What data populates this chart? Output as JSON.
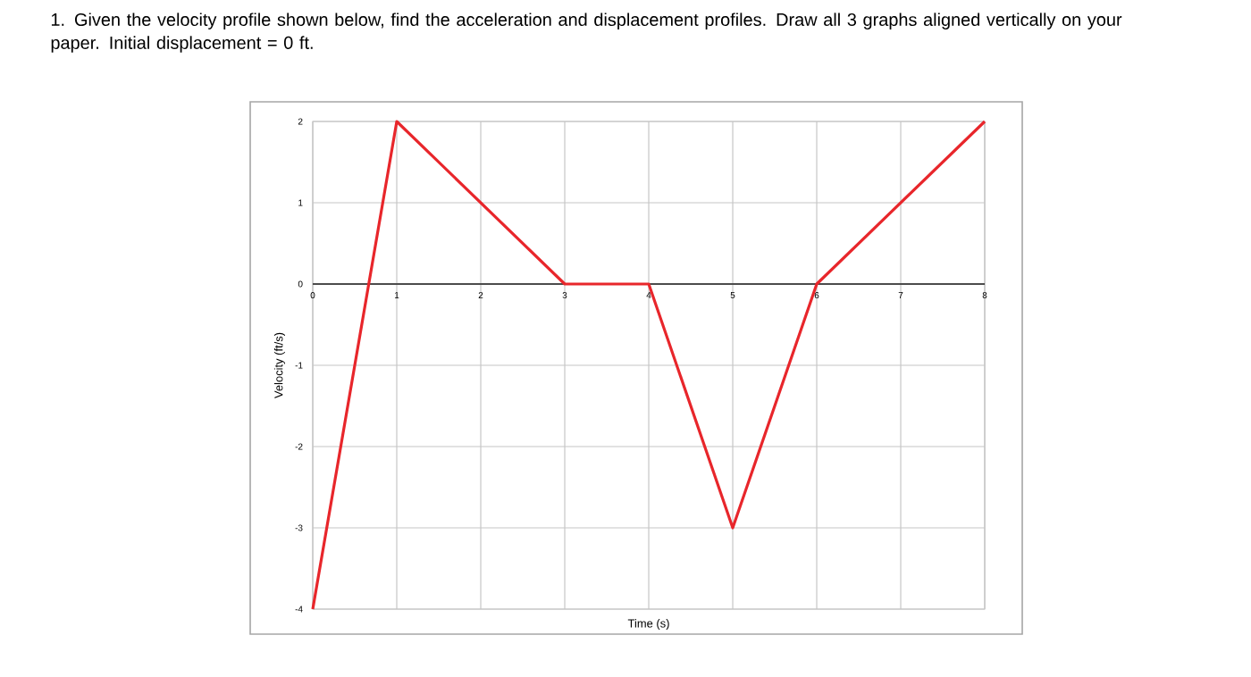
{
  "chart_data": {
    "type": "line",
    "title": "1.  Given the velocity profile shown below, find the acceleration and displacement profiles. Draw all 3 graphs aligned vertically on your paper. Initial displacement = 0 ft.",
    "xlabel": "Time (s)",
    "ylabel": "Velocity (ft/s)",
    "x": [
      0,
      1,
      3,
      4,
      5,
      6,
      8
    ],
    "series": [
      {
        "color": "#e8262b",
        "values": [
          -4,
          2,
          0,
          0,
          -3,
          0,
          2
        ]
      }
    ],
    "xlim": [
      0,
      8
    ],
    "ylim": [
      -4,
      2
    ],
    "xticks": [
      0,
      1,
      2,
      3,
      4,
      5,
      6,
      7,
      8
    ],
    "yticks": [
      -4,
      -3,
      -2,
      -1,
      0,
      1,
      2
    ],
    "grid": true
  }
}
